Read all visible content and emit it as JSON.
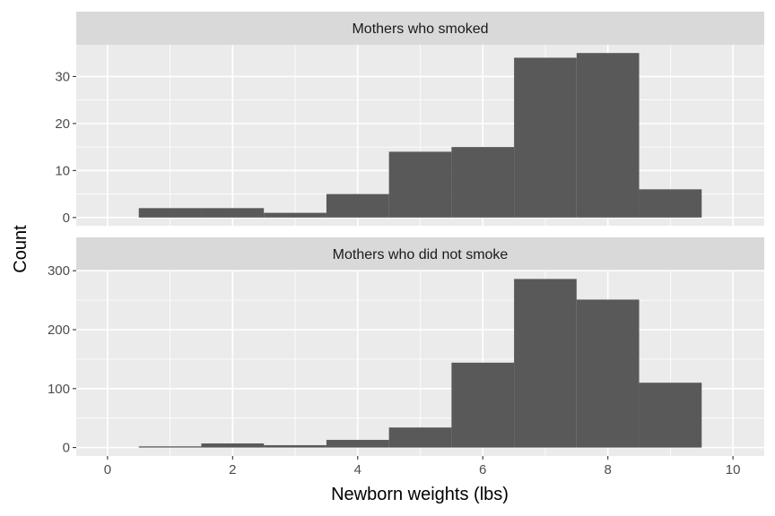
{
  "chart_data": {
    "type": "bar",
    "xlabel": "Newborn weights (lbs)",
    "ylabel": "Count",
    "xlim": [
      -0.5,
      10.5
    ],
    "x_ticks": [
      0,
      2,
      4,
      6,
      8,
      10
    ],
    "bin_width": 1,
    "bin_centers": [
      1,
      2,
      3,
      4,
      5,
      6,
      7,
      8,
      9
    ],
    "grid": true,
    "legend": "none",
    "panels": [
      {
        "strip": "Mothers who smoked",
        "ylim": [
          -1.75,
          36.75
        ],
        "y_ticks": [
          0,
          10,
          20,
          30
        ],
        "values": [
          2,
          2,
          1,
          5,
          14,
          15,
          34,
          35,
          6
        ]
      },
      {
        "strip": "Mothers who did not smoke",
        "ylim": [
          -14.3,
          300.3
        ],
        "y_ticks": [
          0,
          100,
          200,
          300
        ],
        "values": [
          2,
          7,
          4,
          13,
          34,
          144,
          286,
          251,
          110
        ]
      }
    ]
  }
}
